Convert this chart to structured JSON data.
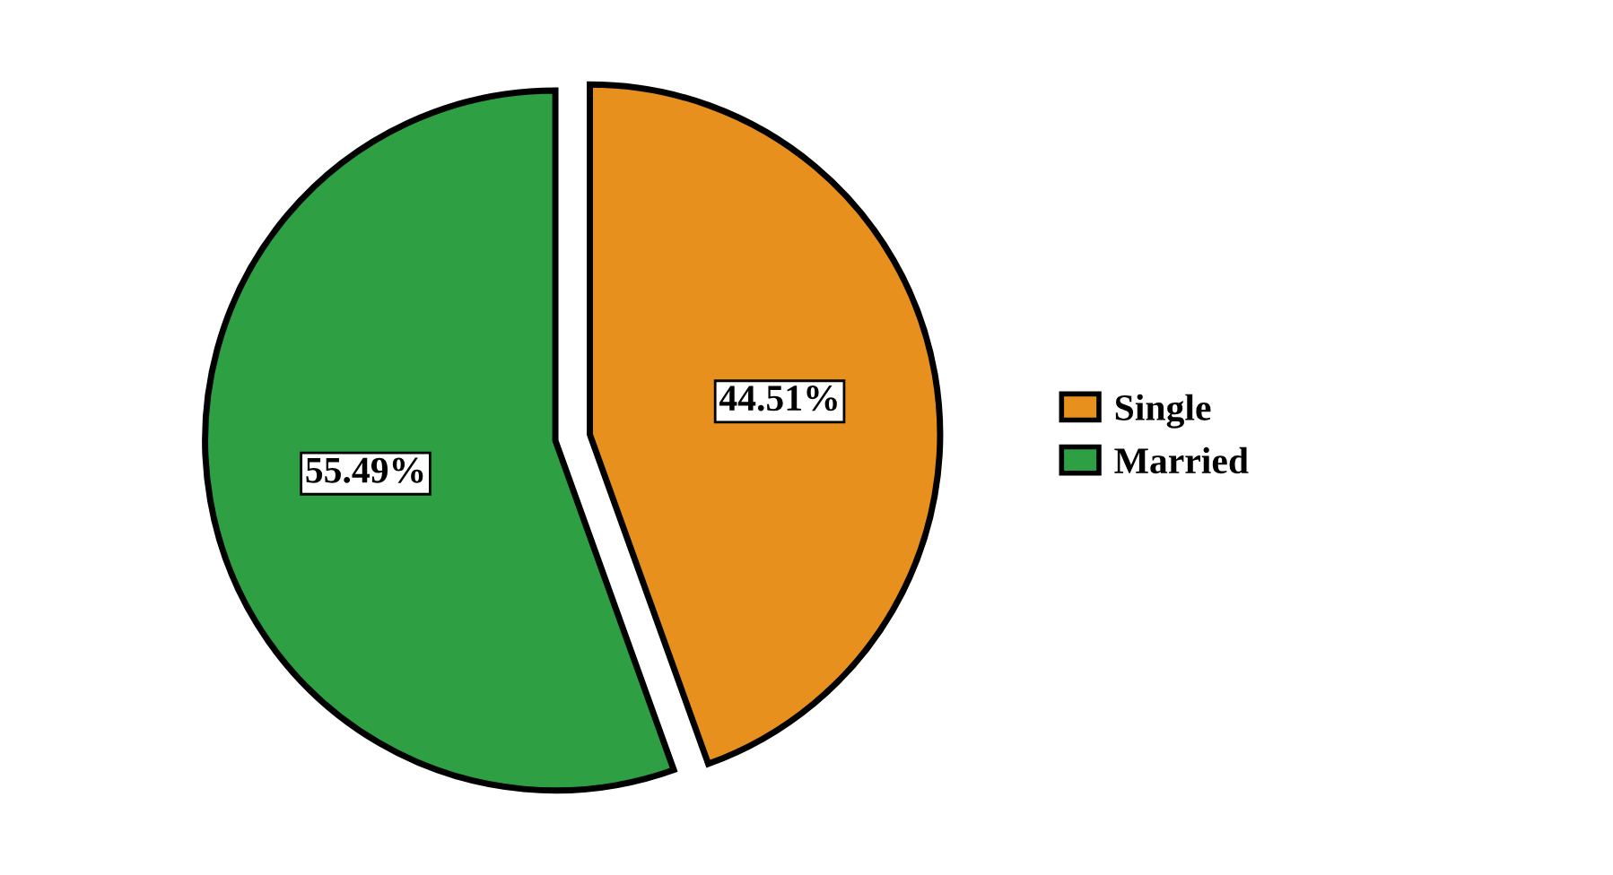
{
  "chart_data": {
    "type": "pie",
    "categories": [
      "Single",
      "Married"
    ],
    "values": [
      44.51,
      55.49
    ],
    "value_labels": [
      "44.51%",
      "55.49%"
    ],
    "colors": [
      "#e8901e",
      "#2ea043"
    ],
    "legend": "right"
  }
}
